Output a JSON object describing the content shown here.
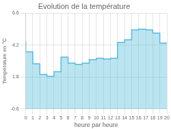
{
  "chart_data": {
    "type": "area",
    "line_style": "step",
    "title": "Evolution de la température",
    "xlabel": "heure par heure",
    "ylabel": "Température en °C",
    "x": [
      0,
      1,
      2,
      3,
      4,
      5,
      6,
      7,
      8,
      9,
      10,
      11,
      12,
      13,
      14,
      15,
      16,
      17,
      18,
      19,
      20
    ],
    "values": [
      4.5,
      3.7,
      2.8,
      2.0,
      1.85,
      2.2,
      3.3,
      2.85,
      2.75,
      2.85,
      3.1,
      3.2,
      3.15,
      3.2,
      4.4,
      4.6,
      5.35,
      5.4,
      5.35,
      5.1,
      4.35
    ],
    "color": "#55bbdd",
    "xlim": [
      0,
      20
    ],
    "xticks": [
      0,
      1,
      2,
      3,
      4,
      5,
      6,
      7,
      8,
      9,
      10,
      11,
      12,
      13,
      14,
      15,
      16,
      17,
      18,
      19,
      20
    ],
    "ylim": [
      -0.6,
      6.6
    ],
    "yticks": [
      -0.6,
      1.8,
      4.2,
      6.6
    ],
    "grid": true
  }
}
